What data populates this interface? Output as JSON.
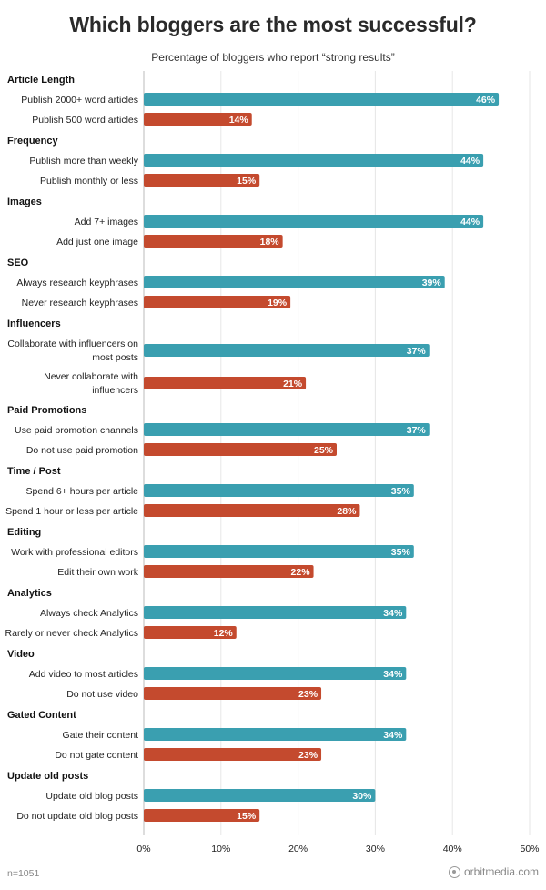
{
  "chart_data": {
    "type": "bar",
    "orientation": "horizontal",
    "title": "Which bloggers are the most successful?",
    "subtitle": "Percentage of bloggers who report “strong results”",
    "xlim": [
      0,
      50
    ],
    "xticks": [
      "0%",
      "10%",
      "20%",
      "30%",
      "40%",
      "50%"
    ],
    "grid": true,
    "colors": {
      "primary": "#3a9fb0",
      "secondary": "#c44a2e"
    },
    "groups": [
      {
        "name": "Article Length",
        "items": [
          {
            "label": "Publish 2000+ word articles",
            "value": 46,
            "display": "46%",
            "kind": "primary"
          },
          {
            "label": "Publish 500 word articles",
            "value": 14,
            "display": "14%",
            "kind": "secondary"
          }
        ]
      },
      {
        "name": "Frequency",
        "items": [
          {
            "label": "Publish more than weekly",
            "value": 44,
            "display": "44%",
            "kind": "primary"
          },
          {
            "label": "Publish monthly or less",
            "value": 15,
            "display": "15%",
            "kind": "secondary"
          }
        ]
      },
      {
        "name": "Images",
        "items": [
          {
            "label": "Add 7+ images",
            "value": 44,
            "display": "44%",
            "kind": "primary"
          },
          {
            "label": "Add just one image",
            "value": 18,
            "display": "18%",
            "kind": "secondary"
          }
        ]
      },
      {
        "name": "SEO",
        "items": [
          {
            "label": "Always research keyphrases",
            "value": 39,
            "display": "39%",
            "kind": "primary"
          },
          {
            "label": "Never research keyphrases",
            "value": 19,
            "display": "19%",
            "kind": "secondary"
          }
        ]
      },
      {
        "name": "Influencers",
        "items": [
          {
            "label": [
              "Collaborate with influencers on",
              "most posts"
            ],
            "value": 37,
            "display": "37%",
            "kind": "primary"
          },
          {
            "label": [
              "Never collaborate with",
              "influencers"
            ],
            "value": 21,
            "display": "21%",
            "kind": "secondary"
          }
        ]
      },
      {
        "name": "Paid Promotions",
        "items": [
          {
            "label": "Use paid promotion channels",
            "value": 37,
            "display": "37%",
            "kind": "primary"
          },
          {
            "label": "Do not use paid promotion",
            "value": 25,
            "display": "25%",
            "kind": "secondary"
          }
        ]
      },
      {
        "name": "Time / Post",
        "items": [
          {
            "label": "Spend 6+ hours per article",
            "value": 35,
            "display": "35%",
            "kind": "primary"
          },
          {
            "label": "Spend 1 hour or less per article",
            "value": 28,
            "display": "28%",
            "kind": "secondary"
          }
        ]
      },
      {
        "name": "Editing",
        "items": [
          {
            "label": "Work with professional editors",
            "value": 35,
            "display": "35%",
            "kind": "primary"
          },
          {
            "label": "Edit their own work",
            "value": 22,
            "display": "22%",
            "kind": "secondary"
          }
        ]
      },
      {
        "name": "Analytics",
        "items": [
          {
            "label": "Always check Analytics",
            "value": 34,
            "display": "34%",
            "kind": "primary"
          },
          {
            "label": "Rarely or never check Analytics",
            "value": 12,
            "display": "12%",
            "kind": "secondary"
          }
        ]
      },
      {
        "name": "Video",
        "items": [
          {
            "label": "Add video to most articles",
            "value": 34,
            "display": "34%",
            "kind": "primary"
          },
          {
            "label": "Do not use video",
            "value": 23,
            "display": "23%",
            "kind": "secondary"
          }
        ]
      },
      {
        "name": "Gated Content",
        "items": [
          {
            "label": "Gate their content",
            "value": 34,
            "display": "34%",
            "kind": "primary"
          },
          {
            "label": "Do not gate content",
            "value": 23,
            "display": "23%",
            "kind": "secondary"
          }
        ]
      },
      {
        "name": "Update old posts",
        "items": [
          {
            "label": "Update old blog posts",
            "value": 30,
            "display": "30%",
            "kind": "primary"
          },
          {
            "label": "Do not update old blog posts",
            "value": 15,
            "display": "15%",
            "kind": "secondary"
          }
        ]
      }
    ]
  },
  "footer": {
    "sample": "n=1051",
    "brand": "orbitmedia.com",
    "brand_icon": "orbit-logo-icon"
  }
}
